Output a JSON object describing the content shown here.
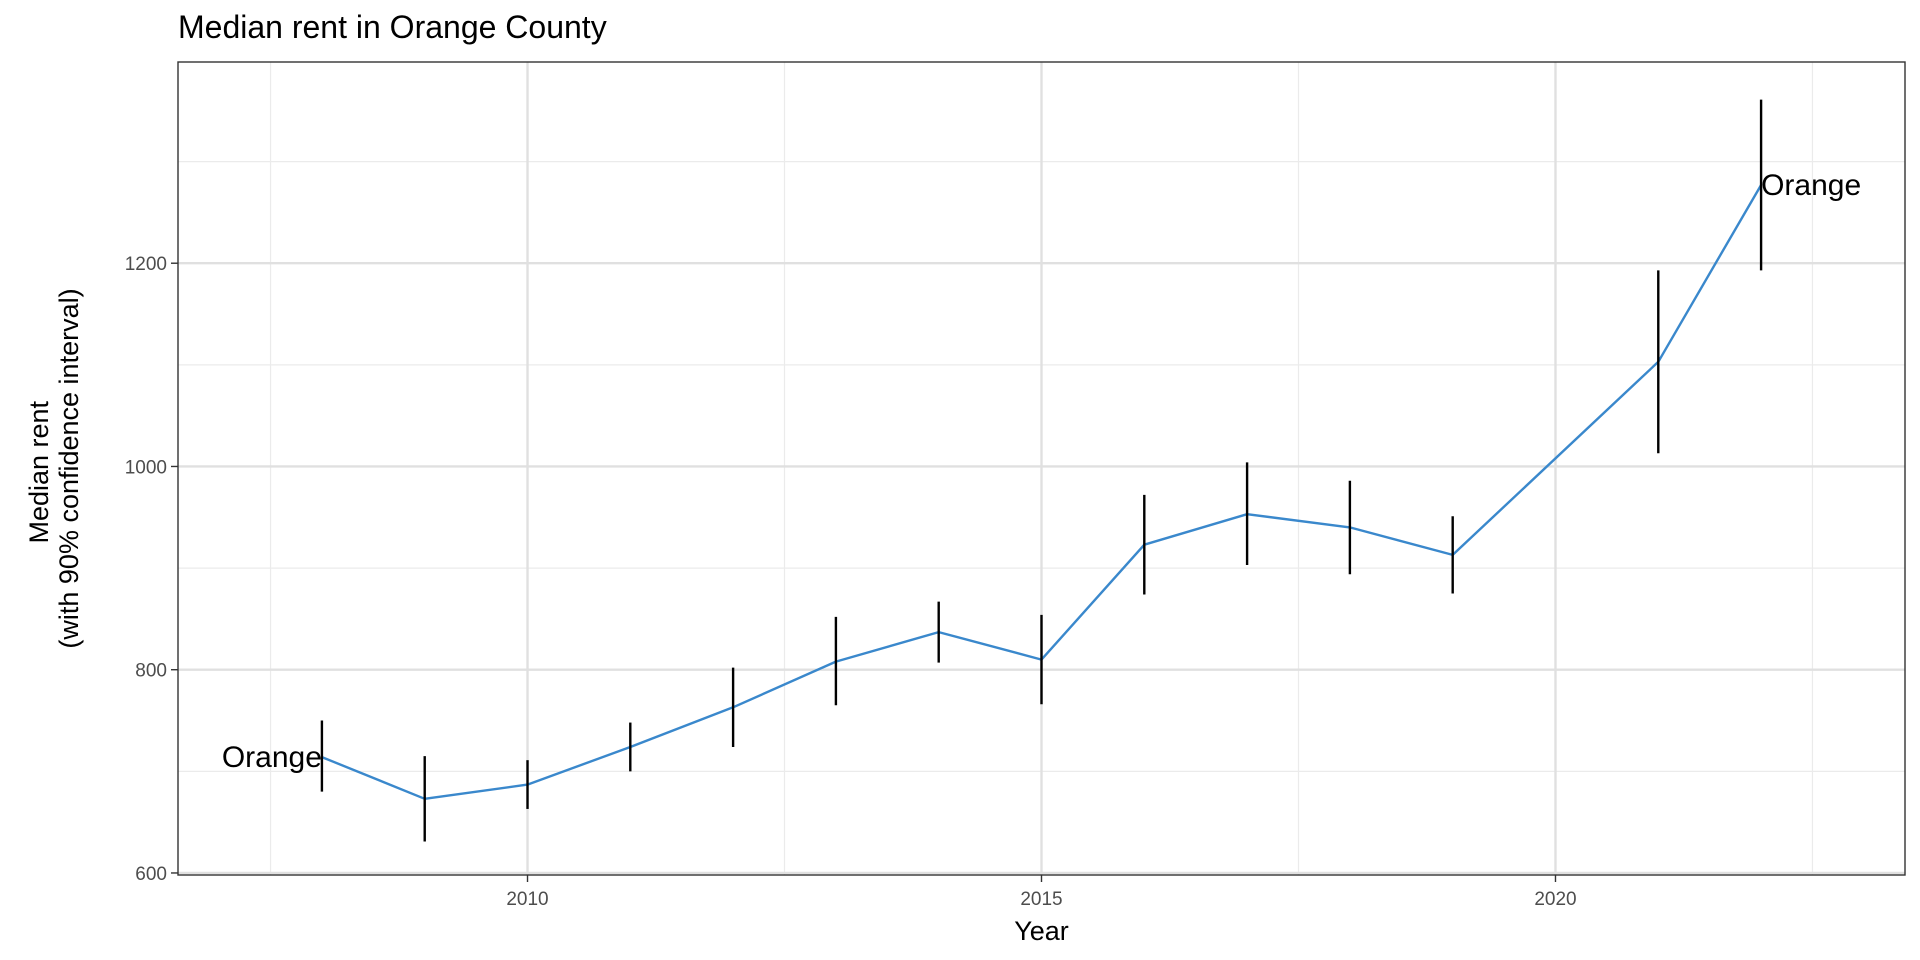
{
  "chart_data": {
    "type": "line",
    "title": "Median rent in Orange County",
    "xlabel": "Year",
    "ylabel": [
      "Median rent",
      "(with 90% confidence interval)"
    ],
    "xlim": [
      2006.6,
      2023.4
    ],
    "ylim": [
      598,
      1398
    ],
    "x_ticks": [
      2010,
      2015,
      2020
    ],
    "y_ticks": [
      600,
      800,
      1000,
      1200
    ],
    "x_minor": [
      2007.5,
      2012.5,
      2017.5,
      2022.5
    ],
    "y_minor": [
      700,
      900,
      1100,
      1300
    ],
    "grid": true,
    "line_color": "#3a88cc",
    "error_bar_color": "#000000",
    "series": [
      {
        "name": "Orange",
        "x": [
          2008,
          2009,
          2010,
          2011,
          2012,
          2013,
          2014,
          2015,
          2016,
          2017,
          2018,
          2019,
          2021,
          2022
        ],
        "y": [
          714,
          673,
          687,
          724,
          763,
          808,
          837,
          810,
          923,
          953,
          940,
          913,
          1103,
          1277
        ],
        "lower": [
          680,
          631,
          663,
          700,
          724,
          765,
          807,
          766,
          874,
          903,
          894,
          875,
          1013,
          1193
        ],
        "upper": [
          750,
          715,
          711,
          748,
          802,
          852,
          867,
          854,
          972,
          1004,
          986,
          951,
          1193,
          1361
        ]
      }
    ],
    "labels": [
      {
        "text": "Orange",
        "x": 2008,
        "y": 714,
        "anchor": "end"
      },
      {
        "text": "Orange",
        "x": 2022,
        "y": 1277,
        "anchor": "start"
      }
    ]
  }
}
